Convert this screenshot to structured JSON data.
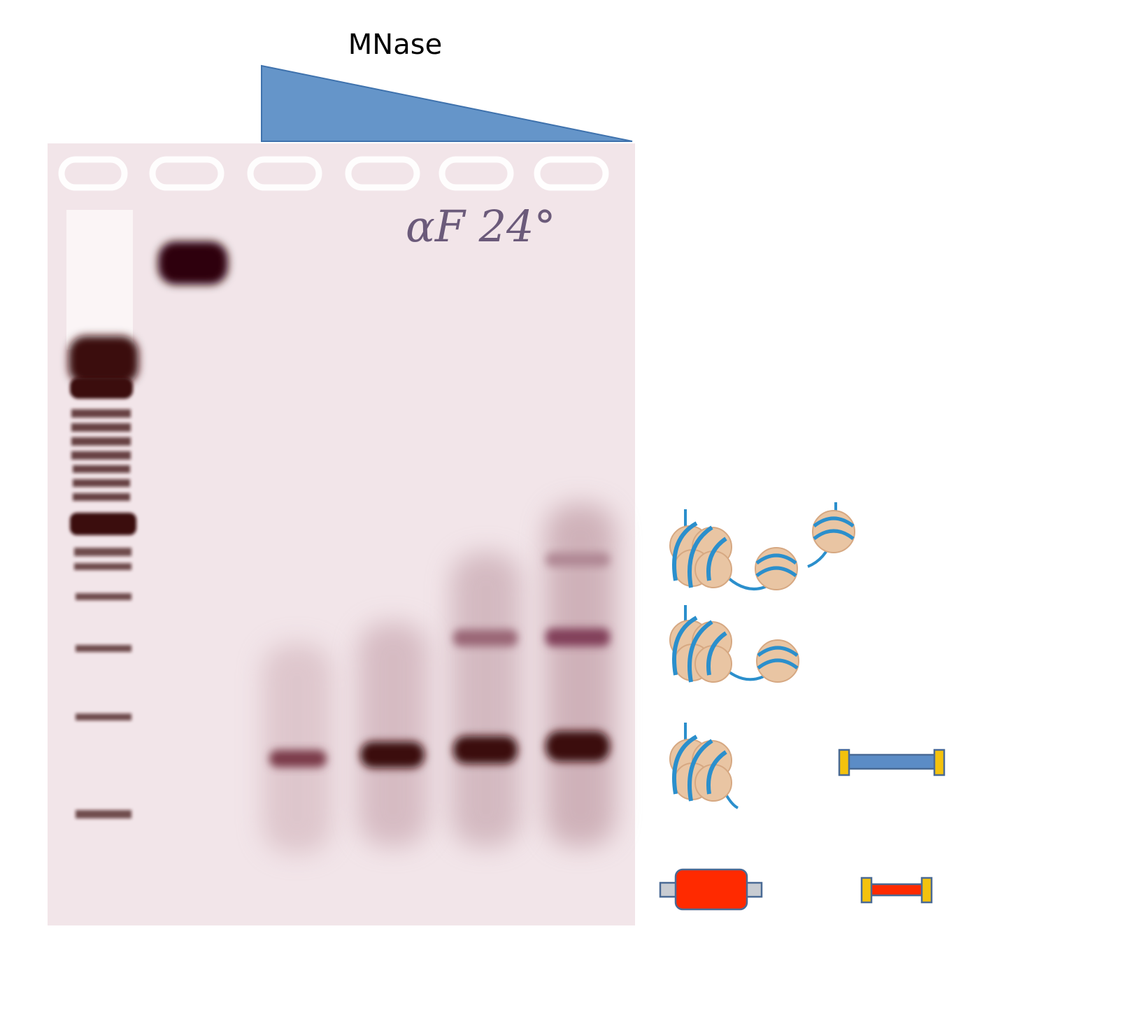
{
  "header": {
    "label": "MNase"
  },
  "gel": {
    "annotation": "αF 24°"
  }
}
